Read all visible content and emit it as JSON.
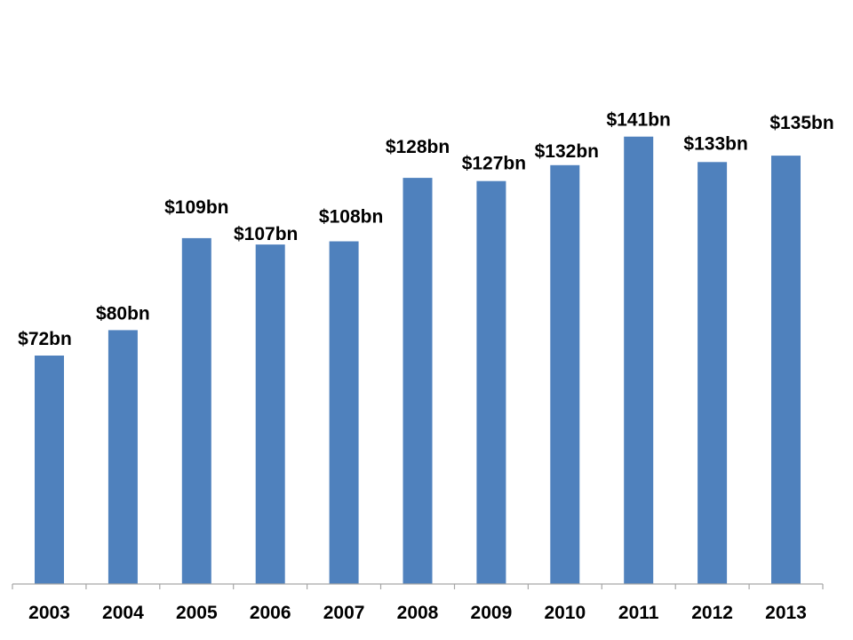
{
  "chart_data": {
    "type": "bar",
    "title": "",
    "xlabel": "",
    "ylabel": "",
    "categories": [
      "2003",
      "2004",
      "2005",
      "2006",
      "2007",
      "2008",
      "2009",
      "2010",
      "2011",
      "2012",
      "2013"
    ],
    "values": [
      72,
      80,
      109,
      107,
      108,
      128,
      127,
      132,
      141,
      133,
      135
    ],
    "data_labels": [
      "$72bn",
      "$80bn",
      "$109bn",
      "$107bn",
      "$108bn",
      "$128bn",
      "$127bn",
      "$132bn",
      "$141bn",
      "$133bn",
      "$135bn"
    ],
    "ylim": [
      0,
      180
    ],
    "grid": false,
    "legend": "none",
    "bar_color": "#4F81BD",
    "axis_color": "#A6A6A6"
  }
}
